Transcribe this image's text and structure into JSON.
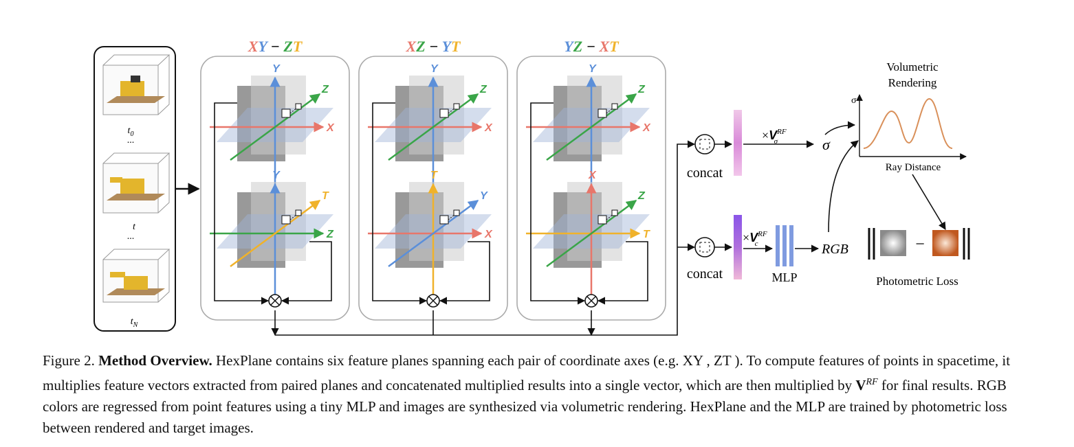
{
  "frames": {
    "t0": "t",
    "t0_sub": "0",
    "t_mid": "t",
    "tN": "t",
    "tN_sub": "N",
    "dots1": "...",
    "dots2": "..."
  },
  "panels": [
    {
      "title_a": "X",
      "title_b": "Y",
      "title_sep": "−",
      "title_c": "Z",
      "title_d": "T",
      "top_axes": {
        "up": "Y",
        "diag": "Z",
        "right": "X"
      },
      "bottom_axes": {
        "up": "Y",
        "diag": "T",
        "right": "Z"
      }
    },
    {
      "title_a": "X",
      "title_b": "Z",
      "title_sep": "−",
      "title_c": "Y",
      "title_d": "T",
      "top_axes": {
        "up": "Y",
        "diag": "Z",
        "right": "X"
      },
      "bottom_axes": {
        "up": "T",
        "diag": "Y",
        "right": "X"
      }
    },
    {
      "title_a": "Y",
      "title_b": "Z",
      "title_sep": "−",
      "title_c": "X",
      "title_d": "T",
      "top_axes": {
        "up": "Y",
        "diag": "Z",
        "right": "X"
      },
      "bottom_axes": {
        "up": "X",
        "diag": "Z",
        "right": "T"
      }
    }
  ],
  "pipeline": {
    "concat_top": "concat",
    "concat_bottom": "concat",
    "v_sigma_times": "×",
    "v_sigma": "V",
    "v_sigma_sup": "RF",
    "v_sigma_sub": "σ",
    "v_c_times": "×",
    "v_c": "V",
    "v_c_sup": "RF",
    "v_c_sub": "c",
    "sigma_out": "σ",
    "mlp": "MLP",
    "rgb": "RGB"
  },
  "rendering": {
    "title_line1": "Volumetric",
    "title_line2": "Rendering",
    "y_axis": "σ",
    "x_axis": "Ray Distance",
    "loss_label": "Photometric Loss",
    "minus": "−"
  },
  "caption": {
    "figure": "Figure 2.",
    "heading": "Method Overview.",
    "text1": "HexPlane contains six feature planes spanning each pair of coordinate axes (e.g. XY , ZT ). To compute features of points in spacetime, it multiplies feature vectors extracted from paired planes and concatenated multiplied results into a single vector, which are then multiplied by",
    "v": "V",
    "v_sup": "RF",
    "text2": "for final results. RGB colors are regressed from point features using a tiny MLP and images are synthesized via volumetric rendering. HexPlane and the MLP are trained by photometric loss between rendered and target images."
  },
  "colors": {
    "x": "#e8766a",
    "y": "#5b8fd9",
    "z": "#3aa548",
    "t": "#f0b22a",
    "sigma_bar": "#d98ad9",
    "rgb_bar": "#8a55e8",
    "curve": "#d9905a",
    "render_patch": "#c86a3a"
  }
}
